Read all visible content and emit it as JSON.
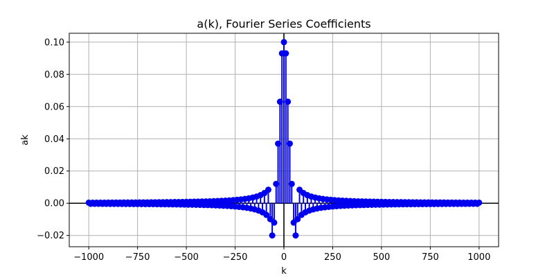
{
  "chart_data": {
    "type": "scatter",
    "title": "a(k), Fourier Series Coefficients",
    "xlabel": "k",
    "ylabel": "ak",
    "xlim": [
      -1100,
      1100
    ],
    "ylim": [
      -0.027,
      0.1055
    ],
    "xticks": [
      -1000,
      -750,
      -500,
      -250,
      0,
      250,
      500,
      750,
      1000
    ],
    "xtick_labels": [
      "−1000",
      "−750",
      "−500",
      "−250",
      "0",
      "250",
      "500",
      "750",
      "1000"
    ],
    "yticks": [
      -0.02,
      0.0,
      0.02,
      0.04,
      0.06,
      0.08,
      0.1
    ],
    "ytick_labels": [
      "−0.02",
      "0.00",
      "0.02",
      "0.04",
      "0.06",
      "0.08",
      "0.10"
    ],
    "grid": true,
    "stem_plot": true,
    "reference_lines": {
      "horizontal_at": 0,
      "vertical_at": 0
    },
    "series": [
      {
        "color": "#0000ee",
        "points_k": [
          -1000,
          1000
        ],
        "k_step": 10,
        "description_values": {
          "k=0": 0.1,
          "k=±10": 0.093,
          "k=±20": 0.063,
          "k=±30": 0.037,
          "k=±40": 0.012,
          "k=±50": -0.012,
          "k=±60": -0.02
        }
      }
    ],
    "colors": {
      "series": "#0000ee",
      "grid": "#b0b0b0",
      "zero_lines": "#000000"
    }
  }
}
